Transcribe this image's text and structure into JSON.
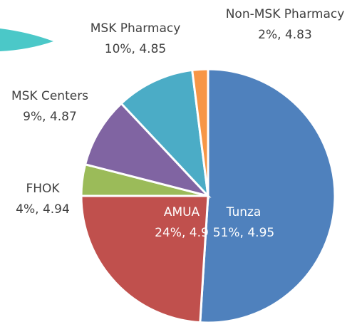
{
  "chart_data": {
    "type": "pie",
    "categories": [
      "Tunza",
      "AMUA",
      "FHOK",
      "MSK Centers",
      "MSK Pharmacy",
      "Non-MSK Pharmacy"
    ],
    "values": [
      51,
      24,
      4,
      9,
      10,
      2
    ],
    "value_labels": [
      "51%, 4.95",
      "24%, 4.9",
      "4%, 4.94",
      "9%, 4.87",
      "10%, 4.85",
      "2%, 4.83"
    ],
    "colors": [
      "#4f81bd",
      "#c0504d",
      "#9bbb59",
      "#8064a2",
      "#4bacc6",
      "#f79646"
    ]
  }
}
